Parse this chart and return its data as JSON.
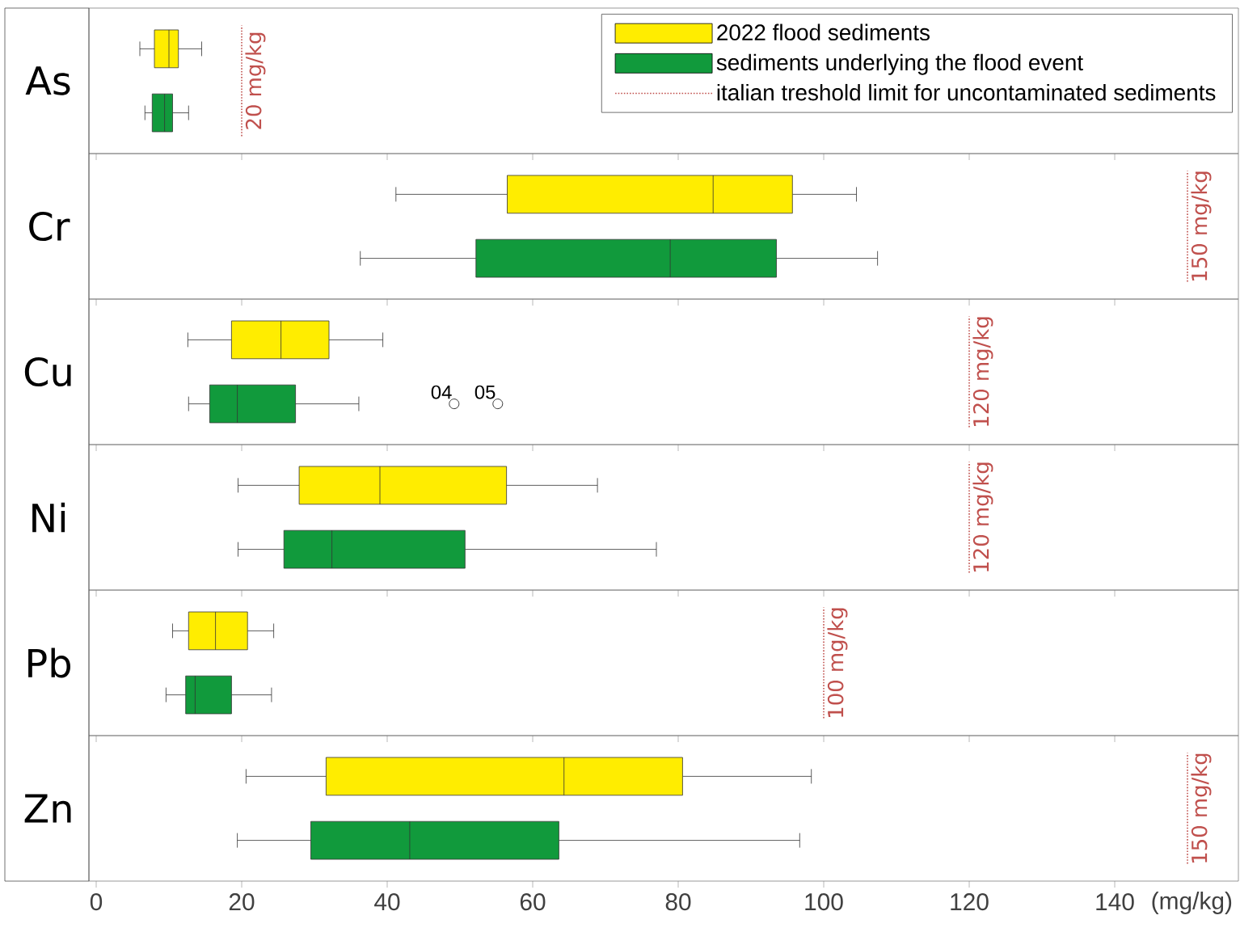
{
  "chart_data": [
    {
      "type": "box",
      "orientation": "horizontal",
      "categories": [
        "As"
      ],
      "xlim": [
        -1,
        157
      ],
      "xticks": [
        0,
        20,
        40,
        60,
        80,
        100,
        120,
        140
      ],
      "tick_labels": "y",
      "legend": "top right",
      "annotations": [
        "italian treshold limit for uncontaminated sediments"
      ],
      "series": [
        {
          "name": "2022 flood sediments",
          "color": "#ffed00",
          "boxes": [
            {
              "low": 6,
              "q1": 8,
              "median": 10,
              "q3": 11.3,
              "high": 14.5
            }
          ]
        },
        {
          "name": "sediments underlying the flood event",
          "color": "#119a3c",
          "boxes": [
            {
              "low": 6.7,
              "q1": 7.7,
              "median": 9.4,
              "q3": 10.5,
              "high": 12.7
            }
          ]
        }
      ],
      "ref_lines": [
        {
          "axis": "x",
          "value": 20,
          "label": "20 mg/kg",
          "color": "#c0504d",
          "line_style": "dotted"
        }
      ]
    },
    {
      "type": "box",
      "orientation": "horizontal",
      "categories": [
        "Cr"
      ],
      "xlim": [
        -1,
        157
      ],
      "xticks": [
        0,
        20,
        40,
        60,
        80,
        100,
        120,
        140
      ],
      "tick_labels": "y",
      "series": [
        {
          "color": "#ffed00",
          "boxes": [
            {
              "low": 41.2,
              "q1": 56.5,
              "median": 84.8,
              "q3": 95.7,
              "high": 104.5
            }
          ]
        },
        {
          "color": "#119a3c",
          "boxes": [
            {
              "low": 36.3,
              "q1": 52.2,
              "median": 78.9,
              "q3": 93.5,
              "high": 107.4
            }
          ]
        }
      ],
      "ref_lines": [
        {
          "axis": "x",
          "value": 150,
          "label": "150 mg/kg",
          "color": "#c0504d",
          "line_style": "dotted"
        }
      ]
    },
    {
      "type": "box",
      "orientation": "horizontal",
      "categories": [
        "Cu"
      ],
      "xlim": [
        -1,
        157
      ],
      "xticks": [
        0,
        20,
        40,
        60,
        80,
        100,
        120,
        140
      ],
      "tick_labels": "y",
      "annotations": [
        "04",
        "05"
      ],
      "series": [
        {
          "color": "#ffed00",
          "boxes": [
            {
              "low": 12.6,
              "q1": 18.6,
              "median": 25.4,
              "q3": 32,
              "high": 39.4
            }
          ]
        },
        {
          "color": "#119a3c",
          "boxes": [
            {
              "low": 12.7,
              "q1": 15.6,
              "median": 19.4,
              "q3": 27.4,
              "high": 36.1,
              "outliers": [
                49.2,
                55.2
              ]
            }
          ]
        }
      ],
      "ref_lines": [
        {
          "axis": "x",
          "value": 120,
          "label": "120 mg/kg",
          "color": "#c0504d",
          "line_style": "dotted"
        }
      ]
    },
    {
      "type": "box",
      "orientation": "horizontal",
      "categories": [
        "Ni"
      ],
      "xlim": [
        -1,
        157
      ],
      "xticks": [
        0,
        20,
        40,
        60,
        80,
        100,
        120,
        140
      ],
      "tick_labels": "y",
      "series": [
        {
          "color": "#ffed00",
          "boxes": [
            {
              "low": 19.5,
              "q1": 27.9,
              "median": 39,
              "q3": 56.4,
              "high": 68.9
            }
          ]
        },
        {
          "color": "#119a3c",
          "boxes": [
            {
              "low": 19.5,
              "q1": 25.8,
              "median": 32.4,
              "q3": 50.7,
              "high": 77
            }
          ]
        }
      ],
      "ref_lines": [
        {
          "axis": "x",
          "value": 120,
          "label": "120 mg/kg",
          "color": "#c0504d",
          "line_style": "dotted"
        }
      ]
    },
    {
      "type": "box",
      "orientation": "horizontal",
      "categories": [
        "Pb"
      ],
      "xlim": [
        -1,
        157
      ],
      "xticks": [
        0,
        20,
        40,
        60,
        80,
        100,
        120,
        140
      ],
      "tick_labels": "y",
      "series": [
        {
          "color": "#ffed00",
          "boxes": [
            {
              "low": 10.5,
              "q1": 12.7,
              "median": 16.4,
              "q3": 20.8,
              "high": 24.4
            }
          ]
        },
        {
          "color": "#119a3c",
          "boxes": [
            {
              "low": 9.6,
              "q1": 12.3,
              "median": 13.6,
              "q3": 18.6,
              "high": 24.1
            }
          ]
        }
      ],
      "ref_lines": [
        {
          "axis": "x",
          "value": 100,
          "label": "100 mg/kg",
          "color": "#c0504d",
          "line_style": "dotted"
        }
      ]
    },
    {
      "type": "box",
      "orientation": "horizontal",
      "categories": [
        "Zn"
      ],
      "xlim": [
        -1,
        157
      ],
      "xticks": [
        0,
        20,
        40,
        60,
        80,
        100,
        120,
        140
      ],
      "xlabel": "(mg/kg)",
      "series": [
        {
          "color": "#ffed00",
          "boxes": [
            {
              "low": 20.6,
              "q1": 31.6,
              "median": 64.3,
              "q3": 80.6,
              "high": 98.3
            }
          ]
        },
        {
          "color": "#119a3c",
          "boxes": [
            {
              "low": 19.4,
              "q1": 29.5,
              "median": 43.1,
              "q3": 63.6,
              "high": 96.7
            }
          ]
        }
      ],
      "ref_lines": [
        {
          "axis": "x",
          "value": 150,
          "label": "150 mg/kg",
          "color": "#c0504d",
          "line_style": "dotted"
        }
      ]
    }
  ]
}
